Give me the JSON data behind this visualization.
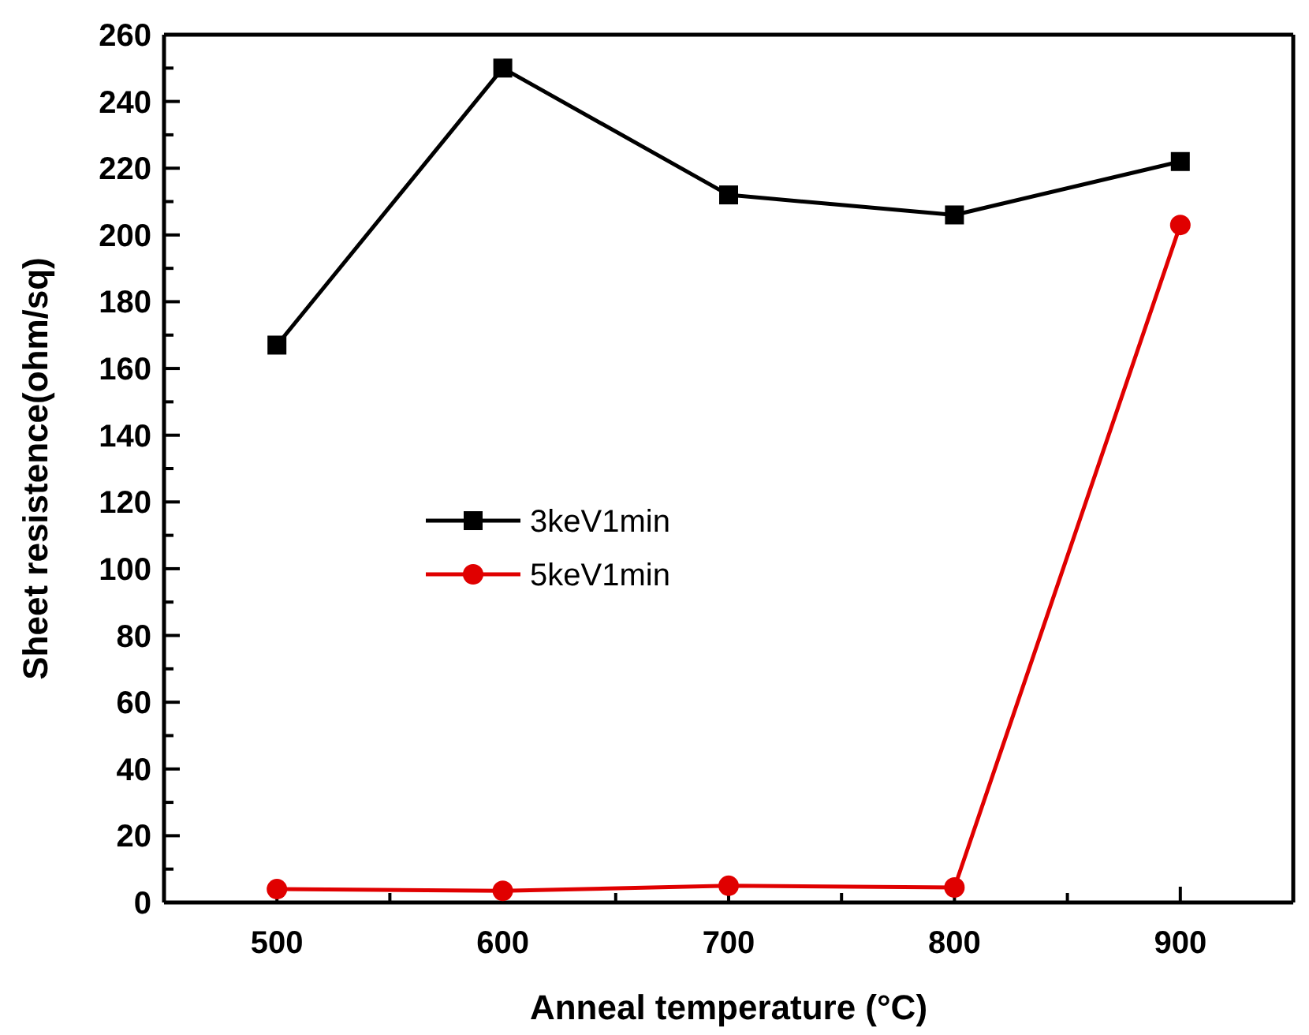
{
  "chart_data": {
    "type": "line",
    "xlabel": "Anneal temperature (°C)",
    "ylabel": "Sheet resistence(ohm/sq)",
    "x": [
      500,
      600,
      700,
      800,
      900
    ],
    "series": [
      {
        "name": "3keV1min",
        "color": "#000000",
        "marker": "square",
        "values": [
          167,
          250,
          212,
          206,
          222
        ]
      },
      {
        "name": "5keV1min",
        "color": "#e00000",
        "marker": "circle",
        "values": [
          4,
          3.5,
          5,
          4.5,
          203
        ]
      }
    ],
    "xlim": [
      450,
      950
    ],
    "xticks": [
      500,
      {
        "value": 550,
        "label": null
      },
      600,
      {
        "value": 650,
        "label": null
      },
      700,
      {
        "value": 750,
        "label": null
      },
      800,
      {
        "value": 850,
        "label": null
      },
      900
    ],
    "ylim": [
      0,
      260
    ],
    "yticks": [
      0,
      20,
      40,
      60,
      80,
      100,
      120,
      140,
      160,
      180,
      200,
      220,
      240,
      260
    ],
    "legend": "left",
    "grid": false,
    "line_style": "solid"
  }
}
